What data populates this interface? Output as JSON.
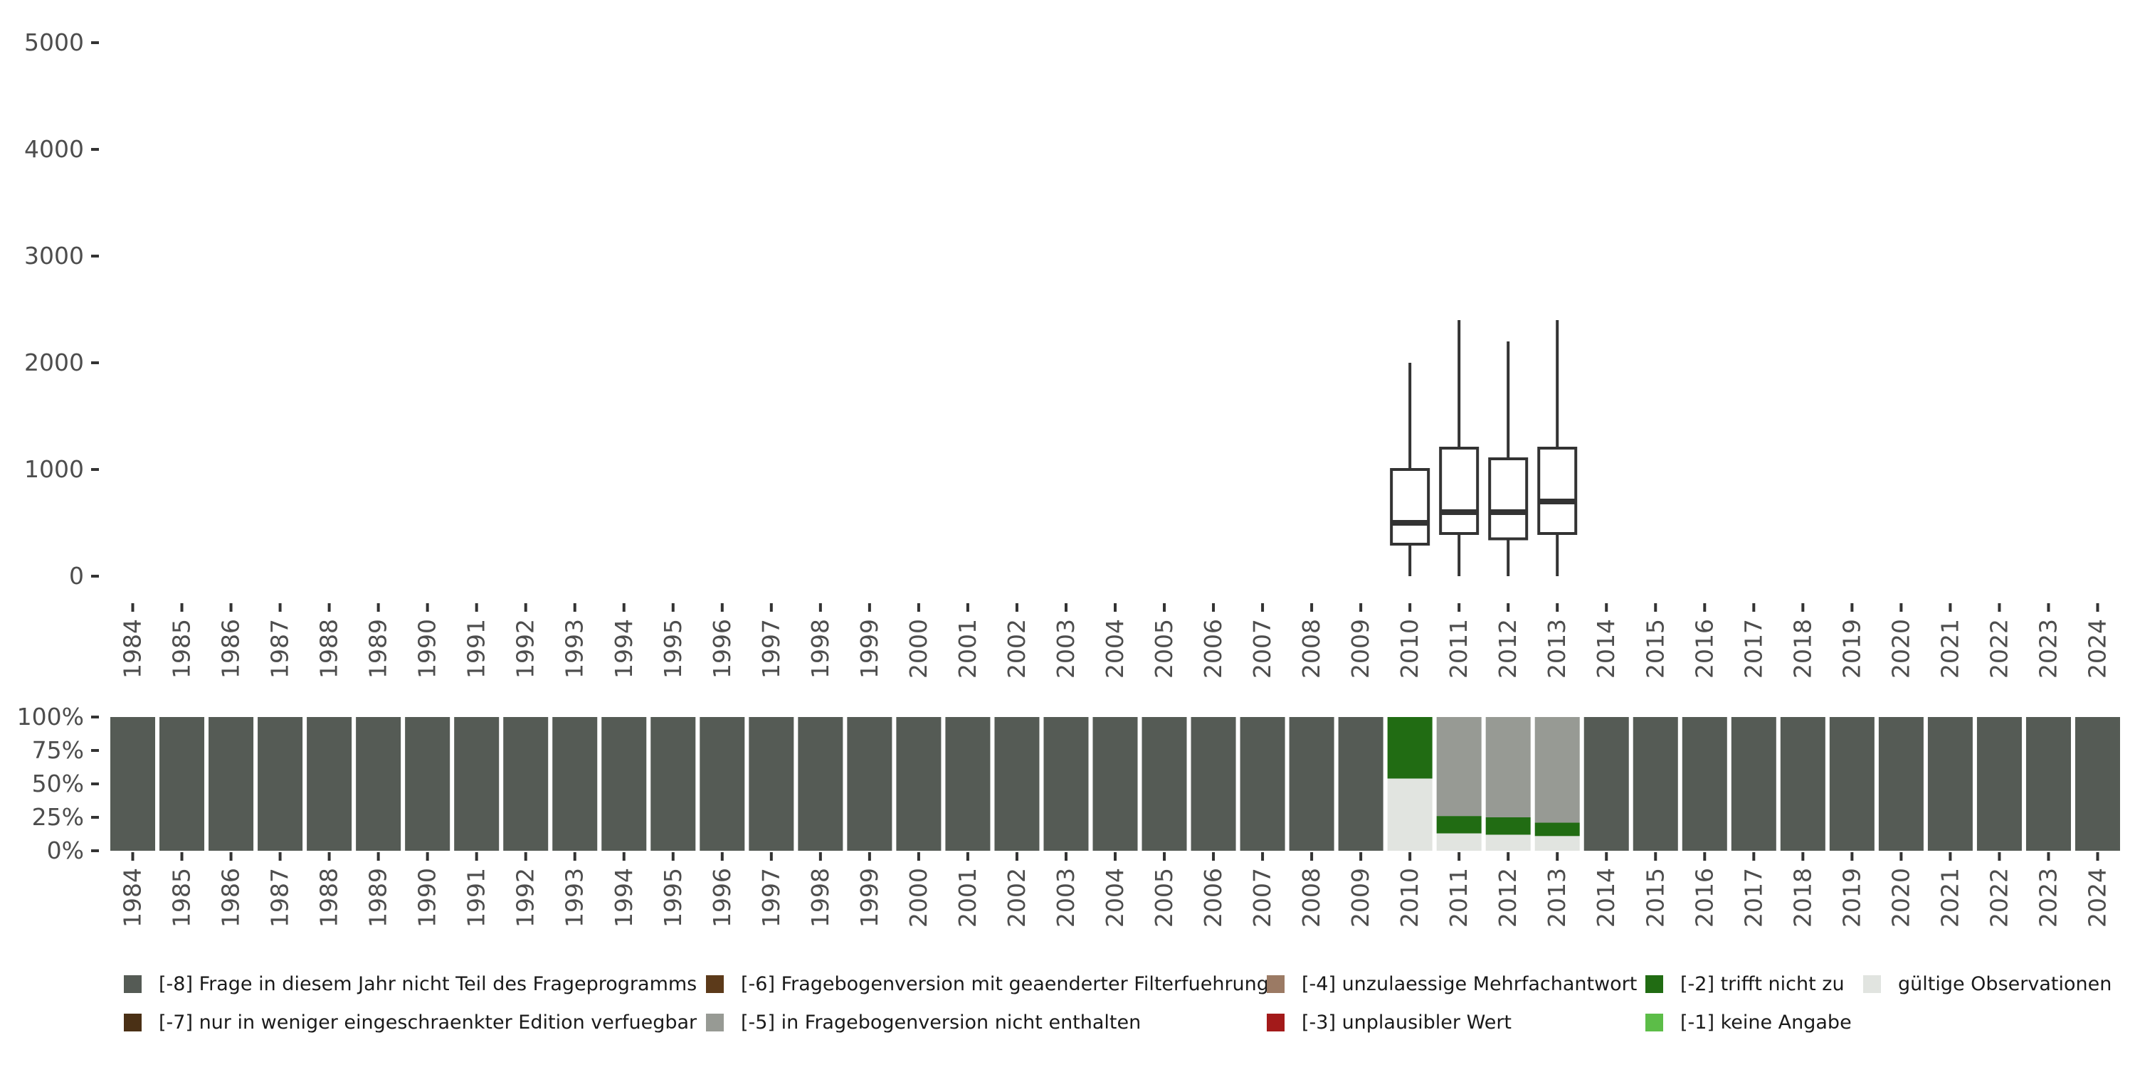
{
  "chart_data": [
    {
      "type": "boxplot",
      "title": "",
      "xlabel": "",
      "ylabel": "",
      "ylim": [
        0,
        5000
      ],
      "y_ticks": [
        "0",
        "1000",
        "2000",
        "3000",
        "4000",
        "5000"
      ],
      "categories": [
        "1984",
        "1985",
        "1986",
        "1987",
        "1988",
        "1989",
        "1990",
        "1991",
        "1992",
        "1993",
        "1994",
        "1995",
        "1996",
        "1997",
        "1998",
        "1999",
        "2000",
        "2001",
        "2002",
        "2003",
        "2004",
        "2005",
        "2006",
        "2007",
        "2008",
        "2009",
        "2010",
        "2011",
        "2012",
        "2013",
        "2014",
        "2015",
        "2016",
        "2017",
        "2018",
        "2019",
        "2020",
        "2021",
        "2022",
        "2023",
        "2024"
      ],
      "boxes": [
        {
          "year": "2010",
          "min": 0,
          "q1": 300,
          "median": 500,
          "q3": 1000,
          "max": 2000
        },
        {
          "year": "2011",
          "min": 0,
          "q1": 400,
          "median": 600,
          "q3": 1200,
          "max": 2400
        },
        {
          "year": "2012",
          "min": 0,
          "q1": 350,
          "median": 600,
          "q3": 1100,
          "max": 2200
        },
        {
          "year": "2013",
          "min": 0,
          "q1": 400,
          "median": 700,
          "q3": 1200,
          "max": 2400
        }
      ]
    },
    {
      "type": "stacked_bar",
      "title": "",
      "xlabel": "",
      "ylabel": "",
      "ylim": [
        0,
        100
      ],
      "y_ticks": [
        "0%",
        "25%",
        "50%",
        "75%",
        "100%"
      ],
      "categories": [
        "1984",
        "1985",
        "1986",
        "1987",
        "1988",
        "1989",
        "1990",
        "1991",
        "1992",
        "1993",
        "1994",
        "1995",
        "1996",
        "1997",
        "1998",
        "1999",
        "2000",
        "2001",
        "2002",
        "2003",
        "2004",
        "2005",
        "2006",
        "2007",
        "2008",
        "2009",
        "2010",
        "2011",
        "2012",
        "2013",
        "2014",
        "2015",
        "2016",
        "2017",
        "2018",
        "2019",
        "2020",
        "2021",
        "2022",
        "2023",
        "2024"
      ],
      "series": [
        {
          "name": "gültige Observationen",
          "values": [
            0,
            0,
            0,
            0,
            0,
            0,
            0,
            0,
            0,
            0,
            0,
            0,
            0,
            0,
            0,
            0,
            0,
            0,
            0,
            0,
            0,
            0,
            0,
            0,
            0,
            0,
            54,
            13,
            12,
            11,
            0,
            0,
            0,
            0,
            0,
            0,
            0,
            0,
            0,
            0,
            0
          ]
        },
        {
          "name": "[-2] trifft nicht zu",
          "values": [
            0,
            0,
            0,
            0,
            0,
            0,
            0,
            0,
            0,
            0,
            0,
            0,
            0,
            0,
            0,
            0,
            0,
            0,
            0,
            0,
            0,
            0,
            0,
            0,
            0,
            0,
            46,
            13,
            13,
            10,
            0,
            0,
            0,
            0,
            0,
            0,
            0,
            0,
            0,
            0,
            0
          ]
        },
        {
          "name": "[-5] in Fragebogenversion nicht enthalten",
          "values": [
            0,
            0,
            0,
            0,
            0,
            0,
            0,
            0,
            0,
            0,
            0,
            0,
            0,
            0,
            0,
            0,
            0,
            0,
            0,
            0,
            0,
            0,
            0,
            0,
            0,
            0,
            0,
            74,
            75,
            79,
            0,
            0,
            0,
            0,
            0,
            0,
            0,
            0,
            0,
            0,
            0
          ]
        },
        {
          "name": "[-8] Frage in diesem Jahr nicht Teil des Frageprogramms",
          "values": [
            100,
            100,
            100,
            100,
            100,
            100,
            100,
            100,
            100,
            100,
            100,
            100,
            100,
            100,
            100,
            100,
            100,
            100,
            100,
            100,
            100,
            100,
            100,
            100,
            100,
            100,
            0,
            0,
            0,
            0,
            100,
            100,
            100,
            100,
            100,
            100,
            100,
            100,
            100,
            100,
            100
          ]
        }
      ]
    }
  ],
  "colors": {
    "-8": "#555b55",
    "-7": "#4a3015",
    "-6": "#5c3a1a",
    "-5": "#979a94",
    "-4": "#9b7a64",
    "-3": "#a31a1a",
    "-2": "#216c13",
    "-1": "#5cbd48",
    "valid": "#e1e4e0",
    "box_stroke": "#333333",
    "tick_text": "#4d4d4d"
  },
  "legend": [
    {
      "label": "[-8] Frage in diesem Jahr nicht Teil des Frageprogramms",
      "color": "#555b55"
    },
    {
      "label": "[-7] nur in weniger eingeschraenkter Edition verfuegbar",
      "color": "#4a3015"
    },
    {
      "label": "[-6] Fragebogenversion mit geaenderter Filterfuehrung",
      "color": "#5c3a1a"
    },
    {
      "label": "[-5] in Fragebogenversion nicht enthalten",
      "color": "#979a94"
    },
    {
      "label": "[-4] unzulaessige Mehrfachantwort",
      "color": "#9b7a64"
    },
    {
      "label": "[-3] unplausibler Wert",
      "color": "#a31a1a"
    },
    {
      "label": "[-2] trifft nicht zu",
      "color": "#216c13"
    },
    {
      "label": "[-1] keine Angabe",
      "color": "#5cbd48"
    },
    {
      "label": "gültige Observationen",
      "color": "#e1e4e0"
    }
  ]
}
